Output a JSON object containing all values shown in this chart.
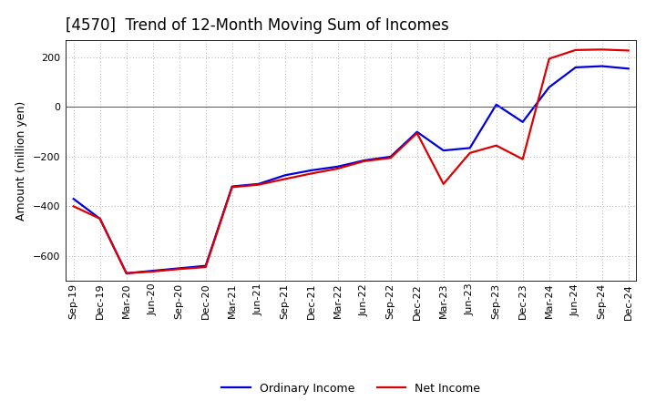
{
  "title": "[4570]  Trend of 12-Month Moving Sum of Incomes",
  "ylabel": "Amount (million yen)",
  "background_color": "#ffffff",
  "grid_color": "#999999",
  "line_color_ordinary": "#0000dd",
  "line_color_net": "#dd0000",
  "legend_ordinary": "Ordinary Income",
  "legend_net": "Net Income",
  "x_labels": [
    "Sep-19",
    "Dec-19",
    "Mar-20",
    "Jun-20",
    "Sep-20",
    "Dec-20",
    "Mar-21",
    "Jun-21",
    "Sep-21",
    "Dec-21",
    "Mar-22",
    "Jun-22",
    "Sep-22",
    "Dec-22",
    "Mar-23",
    "Jun-23",
    "Sep-23",
    "Dec-23",
    "Mar-24",
    "Jun-24",
    "Sep-24",
    "Dec-24"
  ],
  "ordinary_income": [
    -370,
    -450,
    -670,
    -660,
    -650,
    -640,
    -320,
    -310,
    -275,
    -255,
    -240,
    -215,
    -200,
    -100,
    -175,
    -165,
    10,
    -60,
    80,
    160,
    165,
    155
  ],
  "net_income": [
    -400,
    -450,
    -670,
    -663,
    -653,
    -645,
    -323,
    -313,
    -290,
    -268,
    -248,
    -218,
    -205,
    -105,
    -310,
    -185,
    -155,
    -210,
    195,
    230,
    232,
    228
  ],
  "ylim": [
    -700,
    270
  ],
  "yticks": [
    -600,
    -400,
    -200,
    0,
    200
  ],
  "title_fontsize": 12,
  "axis_fontsize": 9,
  "tick_fontsize": 8,
  "legend_fontsize": 9,
  "linewidth": 1.6
}
